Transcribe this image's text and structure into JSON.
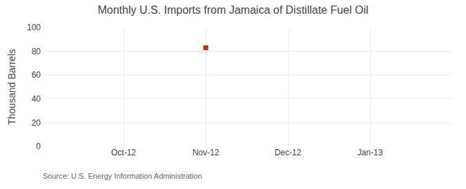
{
  "chart_data": {
    "type": "scatter",
    "title": "Monthly U.S. Imports from Jamaica of Distillate Fuel Oil",
    "ylabel": "Thousand Barrels",
    "annotation": "Source: U.S. Energy Information Administration",
    "categories": [
      "Oct-12",
      "Nov-12",
      "Dec-12",
      "Jan-13"
    ],
    "values": [
      null,
      83,
      null,
      null
    ],
    "color": "#CC2222",
    "marker": "square",
    "ylim": [
      0,
      100
    ],
    "yticks": [
      0,
      20,
      40,
      60,
      80,
      100
    ],
    "grid": true
  }
}
